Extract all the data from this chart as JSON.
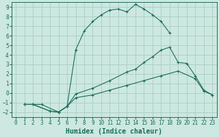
{
  "xlabel": "Humidex (Indice chaleur)",
  "bg_color": "#cce8e0",
  "grid_color": "#aaccc4",
  "line_color": "#1a6b5a",
  "xlim": [
    -0.5,
    23.5
  ],
  "ylim": [
    -2.5,
    9.5
  ],
  "xticks": [
    0,
    1,
    2,
    3,
    4,
    5,
    6,
    7,
    8,
    9,
    10,
    11,
    12,
    13,
    14,
    15,
    16,
    17,
    18,
    19,
    20,
    21,
    22,
    23
  ],
  "yticks": [
    -2,
    -1,
    0,
    1,
    2,
    3,
    4,
    5,
    6,
    7,
    8,
    9
  ],
  "line1_x": [
    1,
    2,
    3,
    5,
    6,
    7,
    8,
    9,
    10,
    11,
    12,
    13,
    14,
    15,
    16,
    17,
    18
  ],
  "line1_y": [
    -1.2,
    -1.2,
    -1.2,
    -2.0,
    -1.4,
    4.5,
    6.5,
    7.5,
    8.2,
    8.7,
    8.8,
    8.5,
    9.3,
    8.8,
    8.2,
    7.5,
    6.3
  ],
  "line2_x": [
    1,
    2,
    4,
    5,
    6,
    7,
    9,
    11,
    13,
    14,
    15,
    16,
    17,
    18,
    19,
    20,
    21,
    22,
    23
  ],
  "line2_y": [
    -1.2,
    -1.2,
    -1.9,
    -2.0,
    -1.4,
    -0.1,
    0.5,
    1.3,
    2.2,
    2.5,
    3.2,
    3.8,
    4.5,
    4.8,
    3.2,
    3.1,
    1.8,
    0.3,
    -0.2
  ],
  "line3_x": [
    1,
    2,
    4,
    5,
    6,
    7,
    9,
    11,
    13,
    15,
    17,
    19,
    21,
    22,
    23
  ],
  "line3_y": [
    -1.2,
    -1.2,
    -1.9,
    -2.0,
    -1.4,
    -0.5,
    -0.2,
    0.3,
    0.8,
    1.3,
    1.8,
    2.3,
    1.5,
    0.2,
    -0.2
  ],
  "font_family": "monospace",
  "tick_fontsize": 5.5,
  "label_fontsize": 7.0
}
